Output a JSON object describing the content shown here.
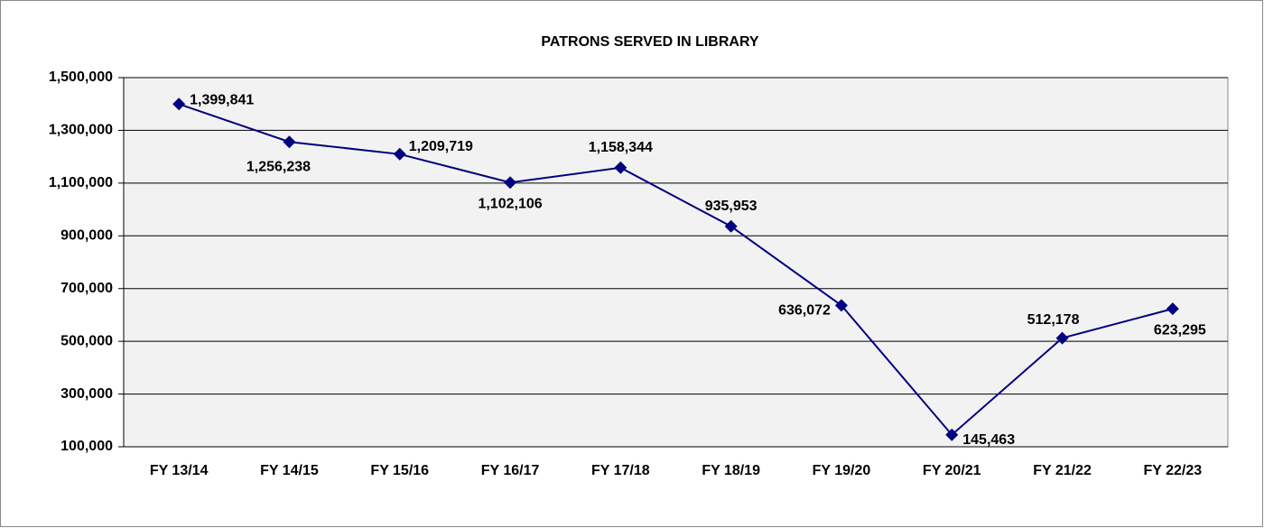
{
  "chart_data": {
    "type": "line",
    "title": "PATRONS SERVED IN LIBRARY",
    "categories": [
      "FY 13/14",
      "FY 14/15",
      "FY 15/16",
      "FY 16/17",
      "FY 17/18",
      "FY 18/19",
      "FY 19/20",
      "FY 20/21",
      "FY 21/22",
      "FY 22/23"
    ],
    "values": [
      1399841,
      1256238,
      1209719,
      1102106,
      1158344,
      935953,
      636072,
      145463,
      512178,
      623295
    ],
    "value_labels": [
      "1,399,841",
      "1,256,238",
      "1,209,719",
      "1,102,106",
      "1,158,344",
      "935,953",
      "636,072",
      "145,463",
      "512,178",
      "623,295"
    ],
    "color": "#000080",
    "ylim": [
      100000,
      1500000
    ],
    "yticks": [
      {
        "value": 100000,
        "label": "100,000"
      },
      {
        "value": 300000,
        "label": "300,000"
      },
      {
        "value": 500000,
        "label": "500,000"
      },
      {
        "value": 700000,
        "label": "700,000"
      },
      {
        "value": 900000,
        "label": "900,000"
      },
      {
        "value": 1100000,
        "label": "1,100,000"
      },
      {
        "value": 1300000,
        "label": "1,300,000"
      },
      {
        "value": 1500000,
        "label": "1,500,000"
      }
    ],
    "grid": true
  }
}
